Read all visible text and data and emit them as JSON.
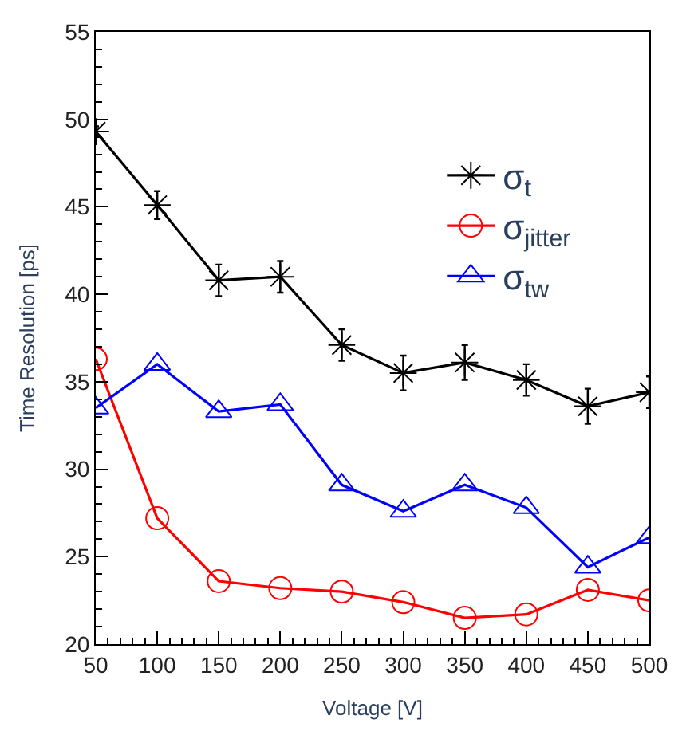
{
  "chart_data": {
    "type": "line",
    "xlabel": "Voltage [V]",
    "ylabel": "Time Resolution [ps]",
    "x": [
      50,
      100,
      150,
      200,
      250,
      300,
      350,
      400,
      450,
      500
    ],
    "series": [
      {
        "name": "σ$_{t}$",
        "color": "#000000",
        "marker": "cross",
        "values": [
          49.3,
          45.1,
          40.8,
          41.0,
          37.1,
          35.5,
          36.1,
          35.1,
          33.6,
          34.4
        ],
        "errors": [
          0.3,
          0.8,
          0.9,
          0.9,
          0.9,
          1.0,
          1.0,
          0.9,
          1.0,
          0.9
        ]
      },
      {
        "name": "σ$_{jitter}$",
        "color": "#ff0000",
        "marker": "circle",
        "values": [
          36.3,
          27.2,
          23.6,
          23.2,
          23.0,
          22.4,
          21.5,
          21.7,
          23.1,
          22.5
        ]
      },
      {
        "name": "σ$_{tw}$",
        "color": "#0000ff",
        "marker": "triangle",
        "values": [
          33.5,
          36.0,
          33.3,
          33.7,
          29.1,
          27.6,
          29.1,
          27.8,
          24.4,
          26.1
        ]
      }
    ],
    "xlim": [
      50,
      500
    ],
    "xticks": [
      50,
      100,
      150,
      200,
      250,
      300,
      350,
      400,
      450,
      500
    ],
    "ylim": [
      20,
      55
    ],
    "yticks": [
      20,
      25,
      30,
      35,
      40,
      45,
      50,
      55
    ],
    "legend": "top right",
    "line_style": "solid"
  }
}
